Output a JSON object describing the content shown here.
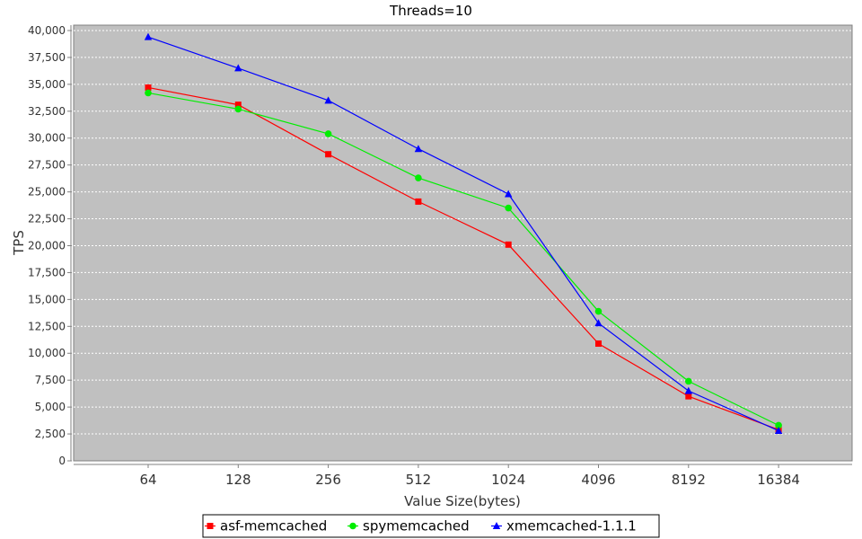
{
  "chart_data": {
    "type": "line",
    "title": "Threads=10",
    "xlabel": "Value Size(bytes)",
    "ylabel": "TPS",
    "categories": [
      "64",
      "128",
      "256",
      "512",
      "1024",
      "4096",
      "8192",
      "16384"
    ],
    "ylim": [
      0,
      40500
    ],
    "yticks": [
      0,
      2500,
      5000,
      7500,
      10000,
      12500,
      15000,
      17500,
      20000,
      22500,
      25000,
      27500,
      30000,
      32500,
      35000,
      37500,
      40000
    ],
    "ytick_labels": [
      "0",
      "2,500",
      "5,000",
      "7,500",
      "10,000",
      "12,500",
      "15,000",
      "17,500",
      "20,000",
      "22,500",
      "25,000",
      "27,500",
      "30,000",
      "32,500",
      "35,000",
      "37,500",
      "40,000"
    ],
    "grid": true,
    "legend_position": "bottom",
    "series": [
      {
        "name": "asf-memcached",
        "color": "#ff0000",
        "marker": "square",
        "values": [
          34700,
          33100,
          28500,
          24100,
          20100,
          10900,
          6000,
          2900
        ]
      },
      {
        "name": "spymemcached",
        "color": "#00ee00",
        "marker": "circle",
        "values": [
          34200,
          32700,
          30400,
          26300,
          23500,
          13900,
          7400,
          3300
        ]
      },
      {
        "name": "xmemcached-1.1.1",
        "color": "#0000ff",
        "marker": "triangle",
        "values": [
          39400,
          36500,
          33500,
          29000,
          24800,
          12800,
          6500,
          2800
        ]
      }
    ],
    "plot_background": "#c0c0c0"
  }
}
